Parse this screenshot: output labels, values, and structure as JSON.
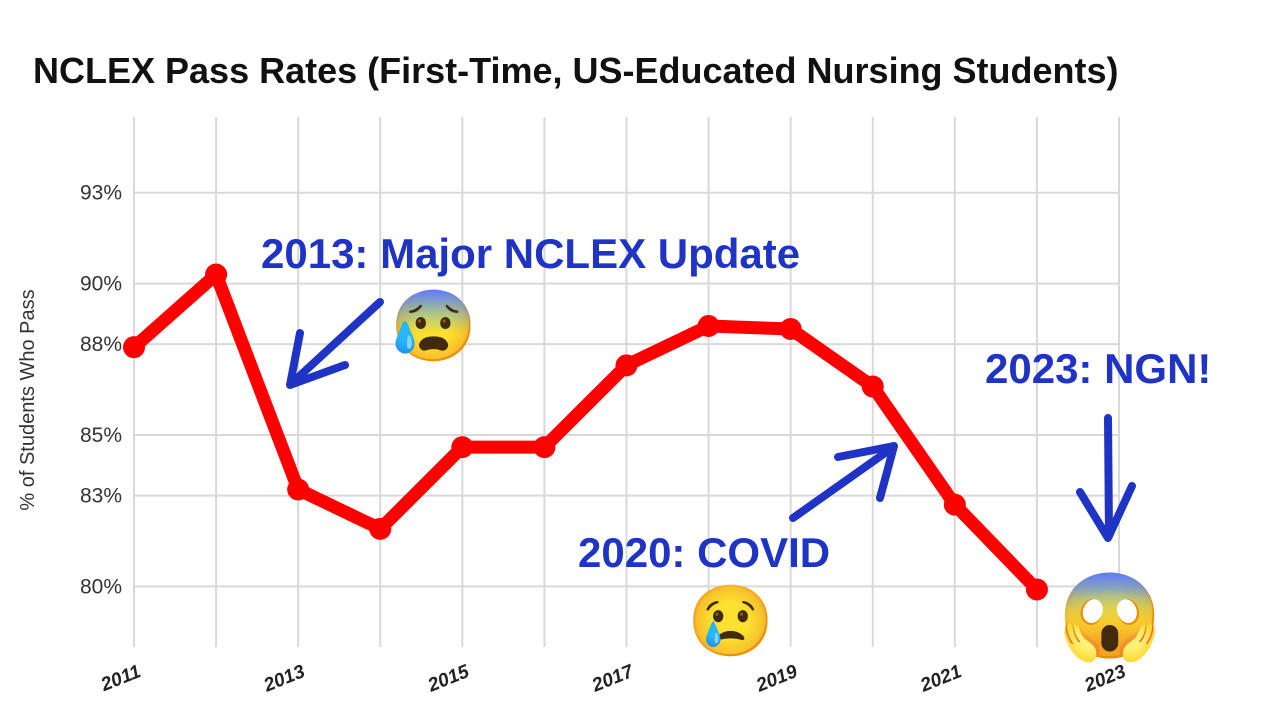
{
  "chart_data": {
    "type": "line",
    "title": "NCLEX Pass Rates (First-Time, US-Educated Nursing Students)",
    "xlabel": "",
    "ylabel": "% of Students Who Pass",
    "x": [
      2011,
      2012,
      2013,
      2014,
      2015,
      2016,
      2017,
      2018,
      2019,
      2020,
      2021,
      2022
    ],
    "series": [
      {
        "values": [
          87.9,
          90.3,
          83.2,
          81.9,
          84.6,
          84.6,
          87.3,
          88.6,
          88.5,
          86.6,
          82.7,
          79.9
        ]
      }
    ],
    "xticks": [
      "2011",
      "2013",
      "2015",
      "2017",
      "2019",
      "2021",
      "2023"
    ],
    "yticks": [
      "80%",
      "83%",
      "85%",
      "88%",
      "90%",
      "93%"
    ],
    "xlim": [
      2011,
      2023
    ],
    "ylim": [
      78,
      95.5
    ],
    "grid": true,
    "line_color": "#ff0000",
    "annotations": [
      {
        "text": "2013: Major NCLEX Update",
        "emoji": "😰",
        "color": "#1f33c4"
      },
      {
        "text": "2020: COVID",
        "emoji": "😢",
        "color": "#1f33c4"
      },
      {
        "text": "2023: NGN!",
        "emoji": "😱",
        "color": "#1f33c4"
      }
    ]
  }
}
